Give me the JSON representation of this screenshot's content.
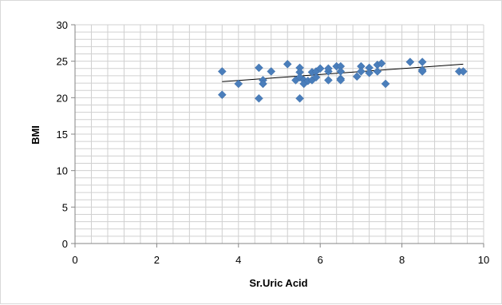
{
  "chart_data": {
    "type": "scatter",
    "title": "",
    "xlabel": "Sr.Uric Acid",
    "ylabel": "BMI",
    "xlim": [
      0,
      10
    ],
    "ylim": [
      0,
      30
    ],
    "x_ticks": [
      "0",
      "2",
      "4",
      "6",
      "8",
      "10"
    ],
    "y_ticks": [
      "0",
      "5",
      "10",
      "15",
      "20",
      "25",
      "30"
    ],
    "grid": true,
    "legend": "none",
    "marker": "diamond",
    "marker_color": "#4a7ebb",
    "trendline": {
      "type": "linear",
      "x": [
        3.6,
        9.5
      ],
      "y": [
        22.2,
        24.6
      ],
      "color": "#000000"
    },
    "points": [
      {
        "x": 3.6,
        "y": 23.6
      },
      {
        "x": 3.6,
        "y": 20.4
      },
      {
        "x": 4.0,
        "y": 21.9
      },
      {
        "x": 4.5,
        "y": 24.1
      },
      {
        "x": 4.5,
        "y": 19.9
      },
      {
        "x": 4.6,
        "y": 22.4
      },
      {
        "x": 4.6,
        "y": 21.9
      },
      {
        "x": 4.8,
        "y": 23.6
      },
      {
        "x": 5.2,
        "y": 24.6
      },
      {
        "x": 5.4,
        "y": 22.4
      },
      {
        "x": 5.5,
        "y": 24.1
      },
      {
        "x": 5.5,
        "y": 23.5
      },
      {
        "x": 5.5,
        "y": 22.8
      },
      {
        "x": 5.5,
        "y": 19.9
      },
      {
        "x": 5.6,
        "y": 22.4
      },
      {
        "x": 5.6,
        "y": 21.9
      },
      {
        "x": 5.7,
        "y": 22.3
      },
      {
        "x": 5.8,
        "y": 23.5
      },
      {
        "x": 5.8,
        "y": 22.4
      },
      {
        "x": 5.9,
        "y": 23.6
      },
      {
        "x": 5.9,
        "y": 22.8
      },
      {
        "x": 6.0,
        "y": 24.0
      },
      {
        "x": 6.2,
        "y": 23.6
      },
      {
        "x": 6.2,
        "y": 22.4
      },
      {
        "x": 6.2,
        "y": 24.0
      },
      {
        "x": 6.4,
        "y": 24.3
      },
      {
        "x": 6.5,
        "y": 24.3
      },
      {
        "x": 6.5,
        "y": 23.6
      },
      {
        "x": 6.5,
        "y": 22.6
      },
      {
        "x": 6.5,
        "y": 22.4
      },
      {
        "x": 6.9,
        "y": 22.9
      },
      {
        "x": 7.0,
        "y": 24.3
      },
      {
        "x": 7.0,
        "y": 23.6
      },
      {
        "x": 7.2,
        "y": 24.1
      },
      {
        "x": 7.2,
        "y": 23.4
      },
      {
        "x": 7.4,
        "y": 24.5
      },
      {
        "x": 7.4,
        "y": 23.6
      },
      {
        "x": 7.5,
        "y": 24.7
      },
      {
        "x": 7.6,
        "y": 21.9
      },
      {
        "x": 8.2,
        "y": 24.9
      },
      {
        "x": 8.5,
        "y": 24.9
      },
      {
        "x": 8.5,
        "y": 23.8
      },
      {
        "x": 8.5,
        "y": 23.6
      },
      {
        "x": 9.4,
        "y": 23.6
      },
      {
        "x": 9.5,
        "y": 23.6
      }
    ]
  }
}
